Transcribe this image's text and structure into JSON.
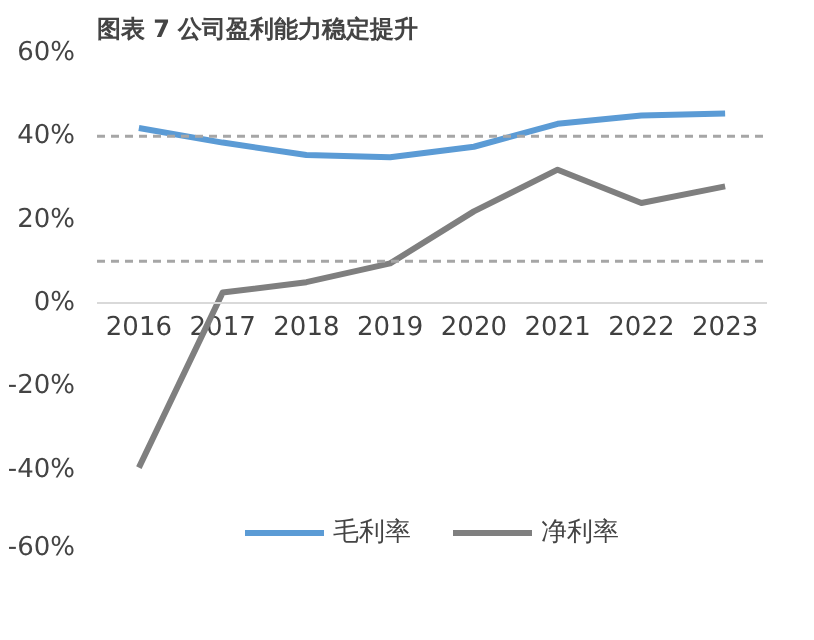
{
  "chart_data": {
    "type": "line",
    "title": "图表 7 公司盈利能力稳定提升",
    "categories": [
      "2016",
      "2017",
      "2018",
      "2019",
      "2020",
      "2021",
      "2022",
      "2023"
    ],
    "series": [
      {
        "name": "毛利率",
        "color": "#5b9bd5",
        "values": [
          42,
          38.5,
          35.5,
          35,
          37.5,
          43,
          45,
          45.5
        ]
      },
      {
        "name": "净利率",
        "color": "#7f7f7f",
        "values": [
          -39.5,
          2.5,
          5,
          9.5,
          22,
          32,
          24,
          28
        ]
      }
    ],
    "ylim": [
      -60,
      60
    ],
    "yticks": [
      {
        "value": -60,
        "label": "-60%"
      },
      {
        "value": -40,
        "label": "-40%"
      },
      {
        "value": -20,
        "label": "-20%"
      },
      {
        "value": 0,
        "label": "0%"
      },
      {
        "value": 20,
        "label": "20%"
      },
      {
        "value": 40,
        "label": "40%"
      },
      {
        "value": 60,
        "label": "60%"
      }
    ],
    "ref_lines": [
      {
        "axis": "y",
        "value": 40,
        "color": "#a6a6a6",
        "line_style": "dashed"
      },
      {
        "axis": "y",
        "value": 10,
        "color": "#a6a6a6",
        "line_style": "dashed"
      }
    ],
    "grid": false,
    "legend": "bottom",
    "marker": "none",
    "line_style": "solid"
  }
}
